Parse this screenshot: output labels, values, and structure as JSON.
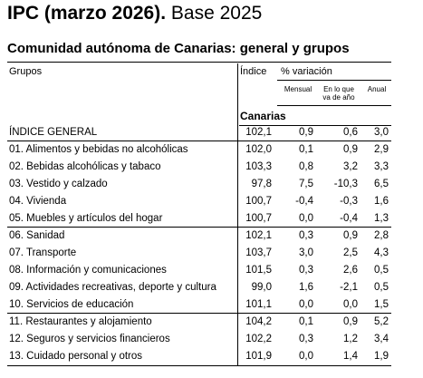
{
  "title": {
    "bold": "IPC (marzo 2026).",
    "normal": "Base 2025"
  },
  "subtitle": "Comunidad autónoma de Canarias: general y grupos",
  "headers": {
    "grupos": "Grupos",
    "indice": "Índice",
    "variacion": "% variación",
    "mensual": "Mensual",
    "en_lo_que_l1": "En lo que",
    "en_lo_que_l2": "va de año",
    "anual": "Anual"
  },
  "region": "Canarias",
  "rows": [
    {
      "label": "ÍNDICE GENERAL",
      "indice": "102,1",
      "mensual": "0,9",
      "anio": "0,6",
      "anual": "3,0"
    },
    {
      "label": "01. Alimentos y bebidas no alcohólicas",
      "indice": "102,0",
      "mensual": "0,1",
      "anio": "0,9",
      "anual": "2,9"
    },
    {
      "label": "02. Bebidas alcohólicas y tabaco",
      "indice": "103,3",
      "mensual": "0,8",
      "anio": "3,2",
      "anual": "3,3"
    },
    {
      "label": "03. Vestido y calzado",
      "indice": "97,8",
      "mensual": "7,5",
      "anio": "-10,3",
      "anual": "6,5"
    },
    {
      "label": "04. Vivienda",
      "indice": "100,7",
      "mensual": "-0,4",
      "anio": "-0,3",
      "anual": "1,6"
    },
    {
      "label": "05. Muebles y artículos del hogar",
      "indice": "100,7",
      "mensual": "0,0",
      "anio": "-0,4",
      "anual": "1,3"
    },
    {
      "label": "06. Sanidad",
      "indice": "102,1",
      "mensual": "0,3",
      "anio": "0,9",
      "anual": "2,8"
    },
    {
      "label": "07. Transporte",
      "indice": "103,7",
      "mensual": "3,0",
      "anio": "2,5",
      "anual": "4,3"
    },
    {
      "label": "08. Información y comunicaciones",
      "indice": "101,5",
      "mensual": "0,3",
      "anio": "2,6",
      "anual": "0,5"
    },
    {
      "label": "09. Actividades recreativas, deporte y cultura",
      "indice": "99,0",
      "mensual": "1,6",
      "anio": "-2,1",
      "anual": "0,5"
    },
    {
      "label": "10. Servicios de educación",
      "indice": "101,1",
      "mensual": "0,0",
      "anio": "0,0",
      "anual": "1,5"
    },
    {
      "label": "11. Restaurantes y alojamiento",
      "indice": "104,2",
      "mensual": "0,1",
      "anio": "0,9",
      "anual": "5,2"
    },
    {
      "label": "12. Seguros y servicios financieros",
      "indice": "102,2",
      "mensual": "0,3",
      "anio": "1,2",
      "anual": "3,4"
    },
    {
      "label": "13. Cuidado personal y otros",
      "indice": "101,9",
      "mensual": "0,0",
      "anio": "1,4",
      "anual": "1,9"
    }
  ]
}
